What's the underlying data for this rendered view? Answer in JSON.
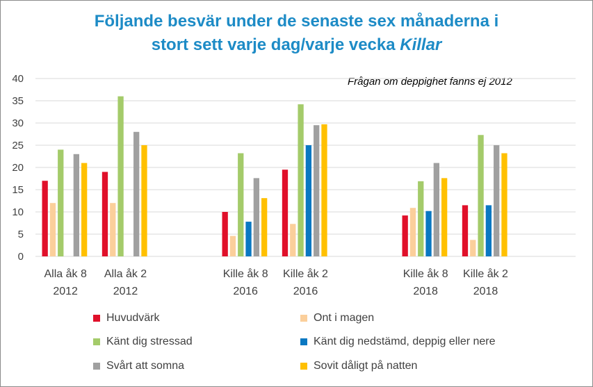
{
  "title": {
    "line1": "Följande besvär under de senaste sex månaderna i",
    "line2_plain": "stort sett varje dag/varje vecka ",
    "line2_italic": "Killar"
  },
  "note": "Frågan om deppighet fanns ej 2012",
  "chart_data": {
    "type": "bar",
    "title": "Följande besvär under de senaste sex månaderna i stort sett varje dag/varje vecka Killar",
    "ylim": [
      0,
      40
    ],
    "yticks": [
      0,
      5,
      10,
      15,
      20,
      25,
      30,
      35,
      40
    ],
    "grid": true,
    "categories": [
      {
        "line1": "Alla åk 8",
        "line2": "2012"
      },
      {
        "line1": "Alla åk 2",
        "line2": "2012"
      },
      {
        "line1": "",
        "line2": ""
      },
      {
        "line1": "Kille åk 8",
        "line2": "2016"
      },
      {
        "line1": "Kille åk 2",
        "line2": "2016"
      },
      {
        "line1": "",
        "line2": ""
      },
      {
        "line1": "Kille åk 8",
        "line2": "2018"
      },
      {
        "line1": "Kille åk 2",
        "line2": "2018"
      },
      {
        "line1": "",
        "line2": ""
      }
    ],
    "series": [
      {
        "name": "Huvudvärk",
        "color": "#e0102a",
        "values": [
          17,
          19,
          null,
          10,
          19.5,
          null,
          9.2,
          11.5,
          null
        ]
      },
      {
        "name": "Ont i magen",
        "color": "#fbcf9b",
        "values": [
          12,
          12,
          null,
          4.6,
          7.3,
          null,
          10.9,
          3.7,
          null
        ]
      },
      {
        "name": "Känt dig stressad",
        "color": "#a4cb6a",
        "values": [
          24,
          36,
          null,
          23.2,
          34.2,
          null,
          16.9,
          27.3,
          null
        ]
      },
      {
        "name": "Känt dig nedstämd, deppig eller nere",
        "color": "#0a78c2",
        "values": [
          null,
          null,
          null,
          7.8,
          25,
          null,
          10.2,
          11.5,
          null
        ]
      },
      {
        "name": "Svårt att somna",
        "color": "#a0a0a0",
        "values": [
          23,
          28,
          null,
          17.6,
          29.5,
          null,
          21,
          25,
          null
        ]
      },
      {
        "name": "Sovit dåligt på natten",
        "color": "#ffc000",
        "values": [
          21,
          25,
          null,
          13.1,
          29.7,
          null,
          17.6,
          23.2,
          null
        ]
      }
    ],
    "legend": "bottom"
  }
}
